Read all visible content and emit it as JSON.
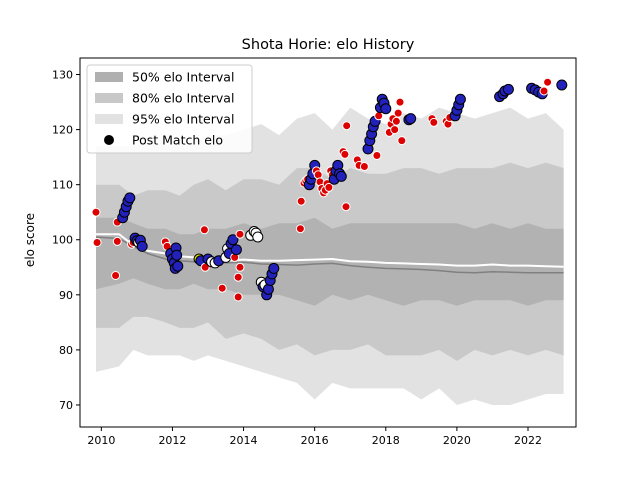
{
  "chart_data": {
    "type": "scatter",
    "title": "Shota Horie: elo History",
    "xlabel": "",
    "ylabel": "elo score",
    "xlim": [
      2009.4,
      2023.35
    ],
    "ylim": [
      66,
      133
    ],
    "x_ticks": [
      2010,
      2012,
      2014,
      2016,
      2018,
      2020,
      2022
    ],
    "y_ticks": [
      70,
      80,
      90,
      100,
      110,
      120,
      130
    ],
    "grid": false,
    "legend": {
      "placement": "top-left",
      "entries": [
        {
          "label": "50% elo Interval",
          "kind": "band",
          "color": "#b0b0b0"
        },
        {
          "label": "80% elo Interval",
          "kind": "band",
          "color": "#c8c8c8"
        },
        {
          "label": "95% elo Interval",
          "kind": "band",
          "color": "#e2e2e2"
        },
        {
          "label": "Post Match elo",
          "kind": "marker",
          "color": "#000000"
        }
      ]
    },
    "colors": {
      "band95": "#e2e2e2",
      "band80": "#c9c9c9",
      "band50": "#b2b2b2",
      "median_line": "#808080",
      "mean_line": "#ffffff",
      "win": "#2222bb",
      "loss": "#dd0000",
      "draw": "#ffffff",
      "other": "#e0e000"
    },
    "bands": {
      "x": [
        2009.85,
        2010.5,
        2010.9,
        2011.3,
        2011.8,
        2012.2,
        2012.6,
        2013.0,
        2013.5,
        2014.0,
        2014.5,
        2015.0,
        2015.5,
        2016.0,
        2016.5,
        2017.0,
        2017.5,
        2018.0,
        2018.5,
        2019.0,
        2019.5,
        2020.0,
        2020.5,
        2021.0,
        2021.5,
        2022.0,
        2022.5,
        2023.0
      ],
      "p95_high": [
        117,
        117,
        117,
        118,
        117,
        117,
        118,
        119,
        119,
        120,
        121,
        119,
        122,
        123,
        120,
        124,
        122,
        121,
        123,
        122,
        124,
        123,
        122,
        123,
        124,
        122,
        123,
        120
      ],
      "p80_high": [
        110,
        110,
        108,
        109,
        109,
        108,
        110,
        111,
        109,
        111,
        111,
        110,
        113,
        113,
        111,
        113,
        112,
        112,
        113,
        113,
        112,
        113,
        113,
        113,
        114,
        113,
        114,
        113
      ],
      "p50_high": [
        104,
        104,
        103,
        102,
        102,
        101,
        101,
        102,
        102,
        103,
        102,
        103,
        103,
        104,
        102,
        103,
        103,
        103,
        103,
        103,
        103,
        103,
        102,
        103,
        102,
        103,
        102,
        102
      ],
      "p50_low": [
        91,
        92,
        93,
        92,
        91,
        91,
        92,
        91,
        91,
        90,
        90,
        90,
        89,
        88,
        90,
        89,
        90,
        89,
        88,
        89,
        89,
        88,
        89,
        89,
        89,
        88,
        89,
        89
      ],
      "p80_low": [
        84,
        84,
        86,
        86,
        85,
        84,
        84,
        85,
        82,
        83,
        82,
        80,
        81,
        79,
        80,
        80,
        81,
        79,
        79,
        79,
        80,
        78,
        80,
        79,
        80,
        79,
        80,
        79
      ],
      "p95_low": [
        76,
        77,
        80,
        79,
        79,
        79,
        78,
        79,
        78,
        77,
        76,
        75,
        74,
        71,
        74,
        73,
        73,
        73,
        73,
        71,
        73,
        70,
        71,
        70,
        70,
        71,
        72,
        72
      ],
      "median": [
        100.5,
        100.2,
        98.8,
        97.5,
        96.5,
        96.2,
        96.0,
        96.0,
        95.8,
        95.9,
        95.6,
        95.5,
        95.4,
        95.6,
        95.7,
        95.3,
        95.0,
        94.8,
        94.7,
        94.6,
        94.4,
        94.1,
        94.0,
        94.2,
        94.1,
        94.0,
        94.0,
        94.0
      ],
      "mean": [
        101.0,
        101.0,
        99.0,
        98.0,
        97.5,
        97.0,
        96.8,
        96.5,
        96.2,
        96.4,
        96.2,
        96.2,
        96.3,
        96.4,
        96.5,
        96.1,
        96.0,
        95.8,
        95.7,
        95.6,
        95.5,
        95.3,
        95.3,
        95.5,
        95.3,
        95.3,
        95.2,
        95.1
      ]
    },
    "points": [
      {
        "x": 2009.85,
        "y": 105,
        "result": "loss"
      },
      {
        "x": 2009.88,
        "y": 99.5,
        "result": "loss"
      },
      {
        "x": 2010.4,
        "y": 93.5,
        "result": "loss"
      },
      {
        "x": 2010.45,
        "y": 99.7,
        "result": "loss"
      },
      {
        "x": 2010.45,
        "y": 103.2,
        "result": "loss"
      },
      {
        "x": 2010.6,
        "y": 104,
        "result": "win"
      },
      {
        "x": 2010.65,
        "y": 105,
        "result": "win"
      },
      {
        "x": 2010.7,
        "y": 106,
        "result": "win"
      },
      {
        "x": 2010.75,
        "y": 107,
        "result": "win"
      },
      {
        "x": 2010.8,
        "y": 107.6,
        "result": "win"
      },
      {
        "x": 2010.85,
        "y": 99.2,
        "result": "loss"
      },
      {
        "x": 2010.9,
        "y": 99.5,
        "result": "loss"
      },
      {
        "x": 2010.95,
        "y": 100.3,
        "result": "win"
      },
      {
        "x": 2011.0,
        "y": 99.8,
        "result": "win"
      },
      {
        "x": 2011.05,
        "y": 99.5,
        "result": "draw"
      },
      {
        "x": 2011.1,
        "y": 99.9,
        "result": "win"
      },
      {
        "x": 2011.15,
        "y": 98.8,
        "result": "win"
      },
      {
        "x": 2011.8,
        "y": 99.6,
        "result": "loss"
      },
      {
        "x": 2011.85,
        "y": 98.8,
        "result": "loss"
      },
      {
        "x": 2011.95,
        "y": 97.5,
        "result": "win"
      },
      {
        "x": 2012.0,
        "y": 96.5,
        "result": "win"
      },
      {
        "x": 2012.05,
        "y": 95.8,
        "result": "win"
      },
      {
        "x": 2012.08,
        "y": 94.8,
        "result": "win"
      },
      {
        "x": 2012.1,
        "y": 98.5,
        "result": "win"
      },
      {
        "x": 2012.12,
        "y": 97.2,
        "result": "win"
      },
      {
        "x": 2012.15,
        "y": 95.2,
        "result": "win"
      },
      {
        "x": 2012.75,
        "y": 96.5,
        "result": "other"
      },
      {
        "x": 2012.8,
        "y": 96.2,
        "result": "win"
      },
      {
        "x": 2012.9,
        "y": 101.8,
        "result": "loss"
      },
      {
        "x": 2012.92,
        "y": 95,
        "result": "loss"
      },
      {
        "x": 2013.0,
        "y": 96.5,
        "result": "win"
      },
      {
        "x": 2013.1,
        "y": 96,
        "result": "draw"
      },
      {
        "x": 2013.2,
        "y": 95.8,
        "result": "draw"
      },
      {
        "x": 2013.3,
        "y": 96.2,
        "result": "win"
      },
      {
        "x": 2013.4,
        "y": 91.2,
        "result": "loss"
      },
      {
        "x": 2013.5,
        "y": 96.8,
        "result": "draw"
      },
      {
        "x": 2013.55,
        "y": 98.4,
        "result": "draw"
      },
      {
        "x": 2013.6,
        "y": 97.5,
        "result": "win"
      },
      {
        "x": 2013.65,
        "y": 99.3,
        "result": "win"
      },
      {
        "x": 2013.7,
        "y": 100,
        "result": "win"
      },
      {
        "x": 2013.75,
        "y": 96.8,
        "result": "loss"
      },
      {
        "x": 2013.8,
        "y": 98.2,
        "result": "win"
      },
      {
        "x": 2013.85,
        "y": 93.2,
        "result": "loss"
      },
      {
        "x": 2013.85,
        "y": 89.6,
        "result": "loss"
      },
      {
        "x": 2013.9,
        "y": 95,
        "result": "loss"
      },
      {
        "x": 2013.9,
        "y": 101,
        "result": "loss"
      },
      {
        "x": 2014.2,
        "y": 100.8,
        "result": "draw"
      },
      {
        "x": 2014.3,
        "y": 101.5,
        "result": "draw"
      },
      {
        "x": 2014.35,
        "y": 101.2,
        "result": "draw"
      },
      {
        "x": 2014.4,
        "y": 100.5,
        "result": "draw"
      },
      {
        "x": 2014.5,
        "y": 92.3,
        "result": "draw"
      },
      {
        "x": 2014.55,
        "y": 91.5,
        "result": "win"
      },
      {
        "x": 2014.6,
        "y": 91.8,
        "result": "draw"
      },
      {
        "x": 2014.65,
        "y": 90,
        "result": "win"
      },
      {
        "x": 2014.7,
        "y": 91,
        "result": "win"
      },
      {
        "x": 2014.75,
        "y": 92.6,
        "result": "win"
      },
      {
        "x": 2014.8,
        "y": 93.8,
        "result": "win"
      },
      {
        "x": 2014.85,
        "y": 94.8,
        "result": "win"
      },
      {
        "x": 2015.6,
        "y": 102,
        "result": "loss"
      },
      {
        "x": 2015.62,
        "y": 107,
        "result": "loss"
      },
      {
        "x": 2015.7,
        "y": 110.3,
        "result": "loss"
      },
      {
        "x": 2015.75,
        "y": 110.7,
        "result": "loss"
      },
      {
        "x": 2015.8,
        "y": 111,
        "result": "loss"
      },
      {
        "x": 2015.85,
        "y": 110,
        "result": "win"
      },
      {
        "x": 2015.9,
        "y": 111,
        "result": "win"
      },
      {
        "x": 2015.95,
        "y": 112,
        "result": "win"
      },
      {
        "x": 2016.0,
        "y": 113.5,
        "result": "win"
      },
      {
        "x": 2016.05,
        "y": 112.5,
        "result": "loss"
      },
      {
        "x": 2016.1,
        "y": 111.8,
        "result": "loss"
      },
      {
        "x": 2016.15,
        "y": 110.5,
        "result": "loss"
      },
      {
        "x": 2016.2,
        "y": 109.3,
        "result": "loss"
      },
      {
        "x": 2016.25,
        "y": 108.5,
        "result": "loss"
      },
      {
        "x": 2016.3,
        "y": 109,
        "result": "loss"
      },
      {
        "x": 2016.35,
        "y": 110.2,
        "result": "loss"
      },
      {
        "x": 2016.4,
        "y": 109.5,
        "result": "loss"
      },
      {
        "x": 2016.45,
        "y": 112.5,
        "result": "loss"
      },
      {
        "x": 2016.5,
        "y": 111.8,
        "result": "loss"
      },
      {
        "x": 2016.55,
        "y": 111,
        "result": "win"
      },
      {
        "x": 2016.6,
        "y": 112.5,
        "result": "win"
      },
      {
        "x": 2016.65,
        "y": 113.5,
        "result": "win"
      },
      {
        "x": 2016.7,
        "y": 112,
        "result": "win"
      },
      {
        "x": 2016.75,
        "y": 111.5,
        "result": "win"
      },
      {
        "x": 2016.8,
        "y": 116,
        "result": "loss"
      },
      {
        "x": 2016.85,
        "y": 115.5,
        "result": "loss"
      },
      {
        "x": 2016.88,
        "y": 106,
        "result": "loss"
      },
      {
        "x": 2016.9,
        "y": 120.7,
        "result": "loss"
      },
      {
        "x": 2017.2,
        "y": 114.5,
        "result": "loss"
      },
      {
        "x": 2017.25,
        "y": 113.5,
        "result": "loss"
      },
      {
        "x": 2017.4,
        "y": 113.3,
        "result": "loss"
      },
      {
        "x": 2017.5,
        "y": 116.5,
        "result": "win"
      },
      {
        "x": 2017.55,
        "y": 118,
        "result": "win"
      },
      {
        "x": 2017.6,
        "y": 119.2,
        "result": "win"
      },
      {
        "x": 2017.65,
        "y": 120.5,
        "result": "win"
      },
      {
        "x": 2017.7,
        "y": 121.5,
        "result": "win"
      },
      {
        "x": 2017.75,
        "y": 115.3,
        "result": "loss"
      },
      {
        "x": 2017.8,
        "y": 122.5,
        "result": "loss"
      },
      {
        "x": 2017.85,
        "y": 124,
        "result": "win"
      },
      {
        "x": 2017.9,
        "y": 125.5,
        "result": "win"
      },
      {
        "x": 2017.95,
        "y": 124.8,
        "result": "win"
      },
      {
        "x": 2018.0,
        "y": 123.8,
        "result": "win"
      },
      {
        "x": 2018.1,
        "y": 119.5,
        "result": "loss"
      },
      {
        "x": 2018.15,
        "y": 121,
        "result": "loss"
      },
      {
        "x": 2018.2,
        "y": 122,
        "result": "loss"
      },
      {
        "x": 2018.25,
        "y": 120,
        "result": "loss"
      },
      {
        "x": 2018.3,
        "y": 121.5,
        "result": "loss"
      },
      {
        "x": 2018.35,
        "y": 123,
        "result": "loss"
      },
      {
        "x": 2018.4,
        "y": 125,
        "result": "loss"
      },
      {
        "x": 2018.45,
        "y": 118,
        "result": "loss"
      },
      {
        "x": 2018.65,
        "y": 121.8,
        "result": "win"
      },
      {
        "x": 2018.7,
        "y": 122,
        "result": "win"
      },
      {
        "x": 2019.3,
        "y": 122,
        "result": "loss"
      },
      {
        "x": 2019.35,
        "y": 121.3,
        "result": "loss"
      },
      {
        "x": 2019.7,
        "y": 121.5,
        "result": "loss"
      },
      {
        "x": 2019.75,
        "y": 121,
        "result": "loss"
      },
      {
        "x": 2019.8,
        "y": 122.2,
        "result": "loss"
      },
      {
        "x": 2019.95,
        "y": 122.5,
        "result": "win"
      },
      {
        "x": 2020.0,
        "y": 123.5,
        "result": "win"
      },
      {
        "x": 2020.05,
        "y": 124.5,
        "result": "win"
      },
      {
        "x": 2020.1,
        "y": 125.5,
        "result": "win"
      },
      {
        "x": 2021.2,
        "y": 126,
        "result": "win"
      },
      {
        "x": 2021.3,
        "y": 126.5,
        "result": "win"
      },
      {
        "x": 2021.35,
        "y": 127,
        "result": "win"
      },
      {
        "x": 2021.45,
        "y": 127.3,
        "result": "win"
      },
      {
        "x": 2022.1,
        "y": 127.5,
        "result": "win"
      },
      {
        "x": 2022.2,
        "y": 127.2,
        "result": "win"
      },
      {
        "x": 2022.3,
        "y": 126.8,
        "result": "win"
      },
      {
        "x": 2022.4,
        "y": 126.5,
        "result": "win"
      },
      {
        "x": 2022.45,
        "y": 127,
        "result": "loss"
      },
      {
        "x": 2022.55,
        "y": 128.6,
        "result": "loss"
      },
      {
        "x": 2022.95,
        "y": 128.1,
        "result": "win"
      }
    ]
  }
}
